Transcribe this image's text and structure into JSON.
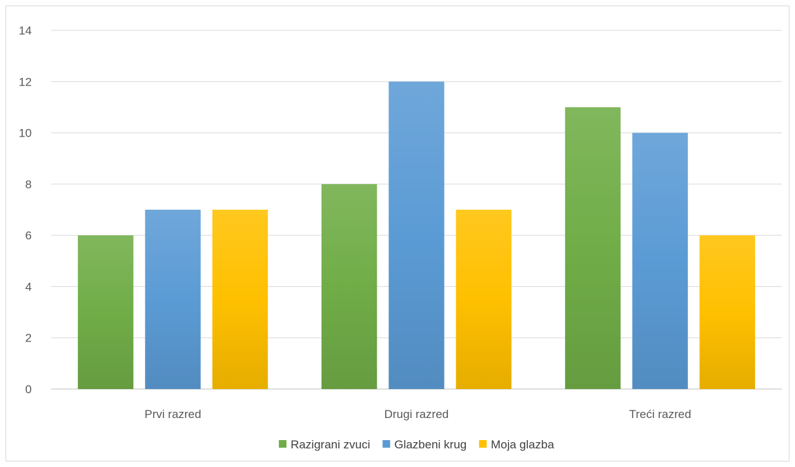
{
  "chart_data": {
    "type": "bar",
    "title": "",
    "xlabel": "",
    "ylabel": "",
    "categories": [
      "Prvi razred",
      "Drugi razred",
      "Treći razred"
    ],
    "series": [
      {
        "name": "Razigrani zvuci",
        "values": [
          6,
          8,
          11
        ],
        "color": "#70ad47"
      },
      {
        "name": "Glazbeni krug",
        "values": [
          7,
          12,
          10
        ],
        "color": "#5b9bd5"
      },
      {
        "name": "Moja glazba",
        "values": [
          7,
          7,
          6
        ],
        "color": "#ffc000"
      }
    ],
    "ylim": [
      0,
      14
    ],
    "yticks": [
      0,
      2,
      4,
      6,
      8,
      10,
      12,
      14
    ],
    "grid": true,
    "legend_position": "bottom"
  }
}
